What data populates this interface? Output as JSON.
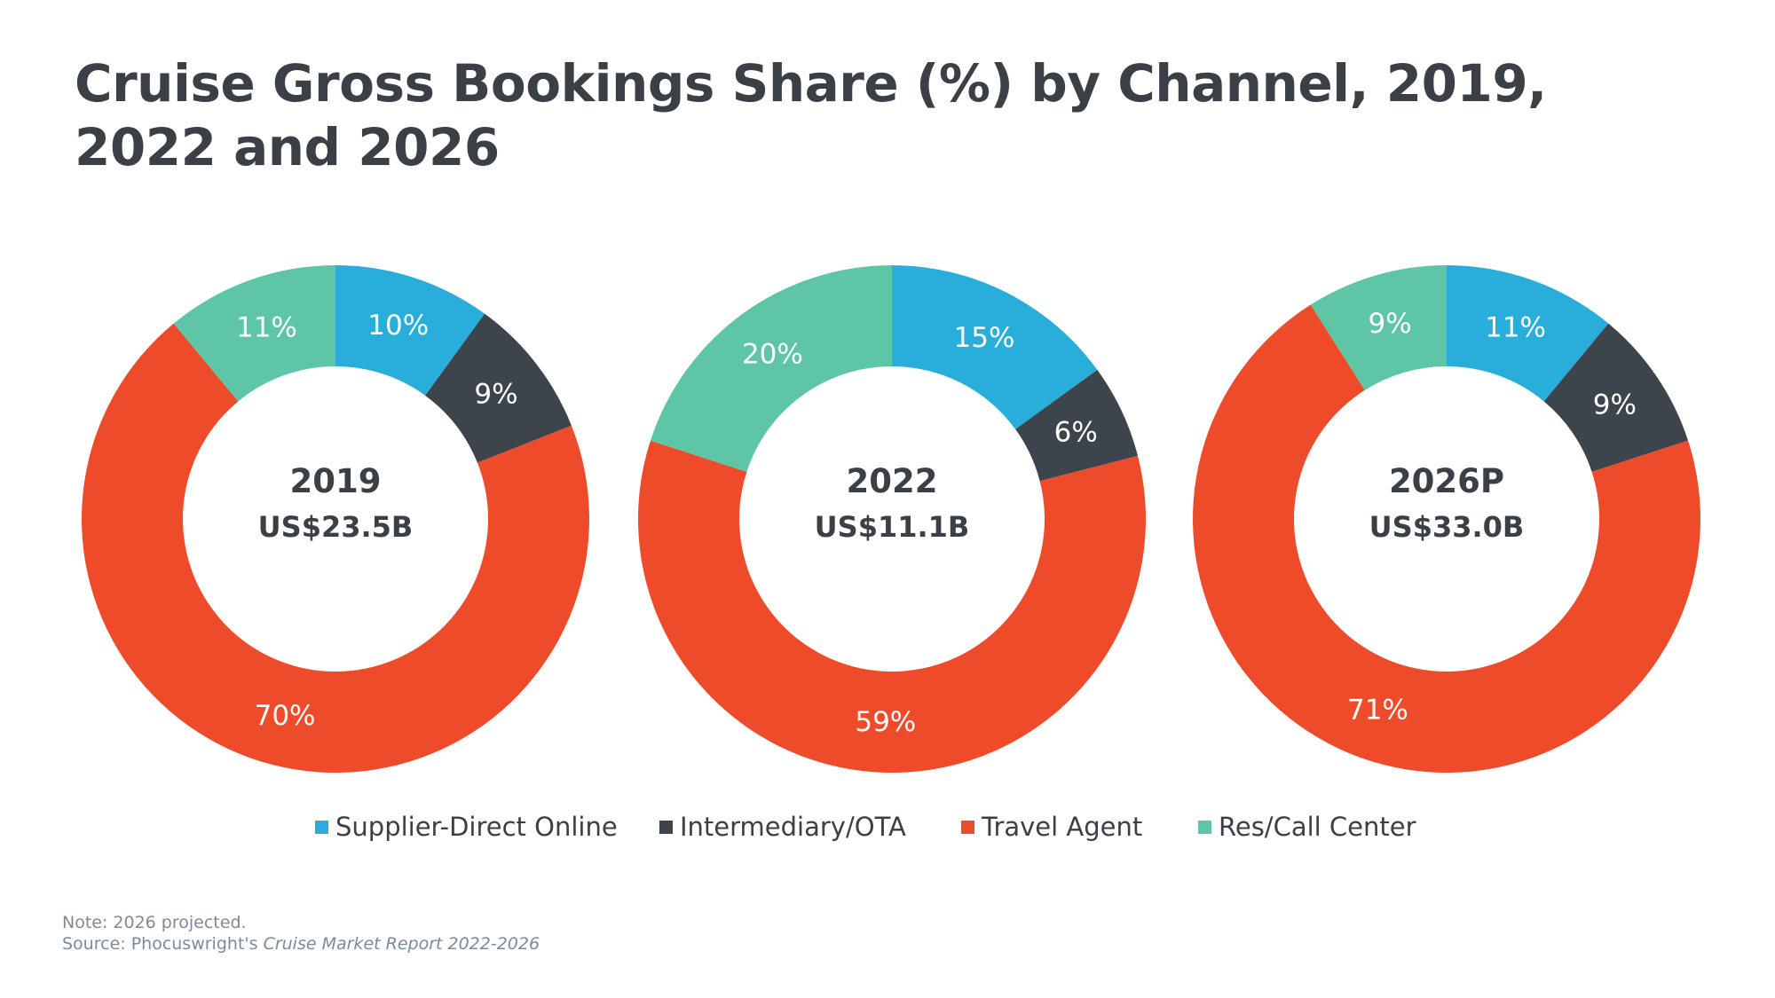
{
  "title": "Cruise Gross Bookings Share (%) by Channel, 2019, 2022 and 2026",
  "legend": [
    {
      "label": "Supplier-Direct Online",
      "color": "#29aedb"
    },
    {
      "label": "Intermediary/OTA",
      "color": "#3d444b"
    },
    {
      "label": "Travel Agent",
      "color": "#ee4b2b"
    },
    {
      "label": "Res/Call Center",
      "color": "#5ec6a6"
    }
  ],
  "note": "Note: 2026 projected.",
  "source_prefix": "Source: Phocuswright's",
  "source_report": "Cruise Market Report 2022-2026",
  "chart_data": [
    {
      "type": "pie",
      "donut": true,
      "center_year": "2019",
      "center_value": "US$23.5B",
      "categories": [
        "Supplier-Direct Online",
        "Intermediary/OTA",
        "Travel Agent",
        "Res/Call Center"
      ],
      "values": [
        10,
        9,
        70,
        11
      ],
      "labels": [
        "10%",
        "9%",
        "70%",
        "11%"
      ]
    },
    {
      "type": "pie",
      "donut": true,
      "center_year": "2022",
      "center_value": "US$11.1B",
      "categories": [
        "Supplier-Direct Online",
        "Intermediary/OTA",
        "Travel Agent",
        "Res/Call Center"
      ],
      "values": [
        15,
        6,
        59,
        20
      ],
      "labels": [
        "15%",
        "6%",
        "59%",
        "20%"
      ]
    },
    {
      "type": "pie",
      "donut": true,
      "center_year": "2026P",
      "center_value": "US$33.0B",
      "categories": [
        "Supplier-Direct Online",
        "Intermediary/OTA",
        "Travel Agent",
        "Res/Call Center"
      ],
      "values": [
        11,
        9,
        71,
        9
      ],
      "labels": [
        "11%",
        "9%",
        "71%",
        "9%"
      ]
    }
  ]
}
